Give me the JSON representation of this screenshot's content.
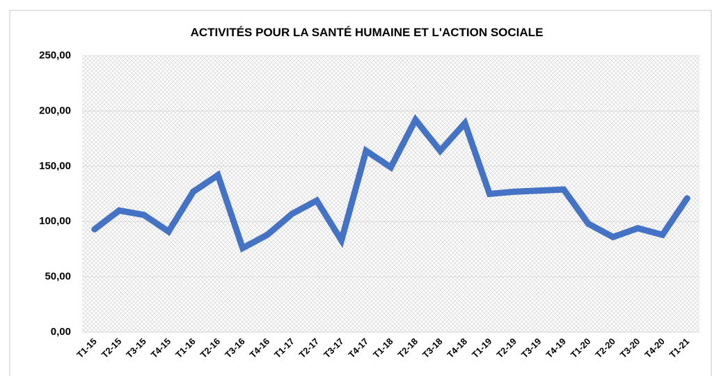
{
  "chart_data": {
    "type": "line",
    "title": "ACTIVITÉS POUR LA SANTÉ HUMAINE ET L'ACTION SOCIALE",
    "categories": [
      "T1-15",
      "T2-15",
      "T3-15",
      "T4-15",
      "T1-16",
      "T2-16",
      "T3-16",
      "T4-16",
      "T1-17",
      "T2-17",
      "T3-17",
      "T4-17",
      "T1-18",
      "T2-18",
      "T3-18",
      "T4-18",
      "T1-19",
      "T2-19",
      "T3-19",
      "T4-19",
      "T1-20",
      "T2-20",
      "T3-20",
      "T4-20",
      "T1-21"
    ],
    "series": [
      {
        "color": "#4472c4",
        "values": [
          93,
          110,
          106,
          91,
          127,
          142,
          76,
          88,
          107,
          119,
          83,
          164,
          149,
          192,
          164,
          189,
          125,
          127,
          128,
          129,
          98,
          86,
          94,
          88,
          121
        ]
      }
    ],
    "ylim": [
      0,
      250
    ],
    "yticks": [
      {
        "value": 0,
        "label": "0,00"
      },
      {
        "value": 50,
        "label": "50,00"
      },
      {
        "value": 100,
        "label": "100,00"
      },
      {
        "value": 150,
        "label": "150,00"
      },
      {
        "value": 200,
        "label": "200,00"
      },
      {
        "value": 250,
        "label": "250,00"
      }
    ],
    "grid": true
  }
}
